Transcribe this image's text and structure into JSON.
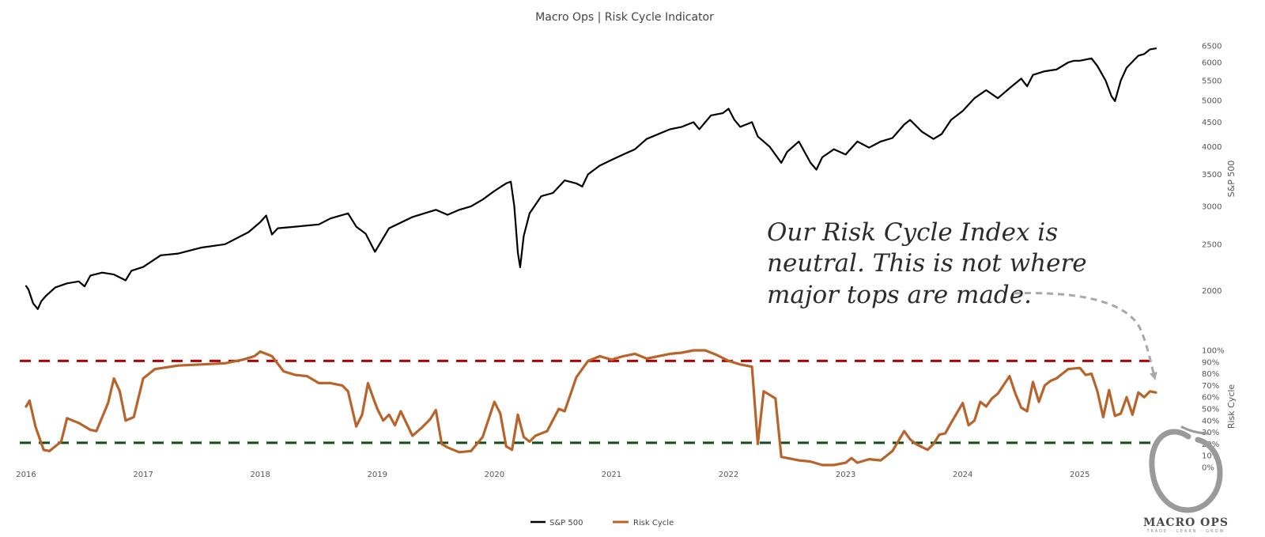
{
  "chart_data": {
    "type": "line",
    "title": "Macro Ops | Risk Cycle Indicator",
    "x_tick_labels": [
      "2016",
      "2017",
      "2018",
      "2019",
      "2020",
      "2021",
      "2022",
      "2023",
      "2024",
      "2025"
    ],
    "x_range": [
      2016.0,
      2025.67
    ],
    "y_axes": [
      {
        "id": "sp500",
        "title": "S&P 500",
        "scale": "log",
        "ticks": [
          2000,
          2500,
          3000,
          3500,
          4000,
          4500,
          5000,
          5500,
          6000,
          6500
        ],
        "range": [
          1800,
          6700
        ]
      },
      {
        "id": "risk",
        "title": "Risk Cycle",
        "scale": "linear",
        "ticks": [
          0,
          10,
          20,
          30,
          40,
          50,
          60,
          70,
          80,
          90,
          100
        ],
        "tick_labels": [
          "0%",
          "10%",
          "20%",
          "30%",
          "40%",
          "50%",
          "60%",
          "70%",
          "80%",
          "90%",
          "100%"
        ],
        "range": [
          0,
          100
        ]
      }
    ],
    "reference_lines": [
      {
        "axis": "risk",
        "value": 91,
        "color": "#b30000",
        "style": "dashed"
      },
      {
        "axis": "risk",
        "value": 21,
        "color": "#0f4d1a",
        "style": "dashed"
      }
    ],
    "series": [
      {
        "name": "S&P 500",
        "axis": "sp500",
        "color": "#000000",
        "x": [
          2016.0,
          2016.02,
          2016.06,
          2016.1,
          2016.13,
          2016.17,
          2016.25,
          2016.35,
          2016.45,
          2016.5,
          2016.55,
          2016.65,
          2016.75,
          2016.85,
          2016.9,
          2017.0,
          2017.15,
          2017.3,
          2017.5,
          2017.7,
          2017.9,
          2018.0,
          2018.05,
          2018.1,
          2018.15,
          2018.3,
          2018.5,
          2018.6,
          2018.75,
          2018.82,
          2018.9,
          2018.98,
          2019.1,
          2019.3,
          2019.4,
          2019.5,
          2019.6,
          2019.7,
          2019.8,
          2019.9,
          2020.0,
          2020.1,
          2020.14,
          2020.17,
          2020.2,
          2020.22,
          2020.25,
          2020.3,
          2020.4,
          2020.5,
          2020.6,
          2020.7,
          2020.75,
          2020.8,
          2020.9,
          2021.0,
          2021.1,
          2021.2,
          2021.3,
          2021.5,
          2021.6,
          2021.7,
          2021.75,
          2021.85,
          2021.95,
          2022.0,
          2022.05,
          2022.1,
          2022.2,
          2022.25,
          2022.35,
          2022.45,
          2022.5,
          2022.6,
          2022.7,
          2022.75,
          2022.8,
          2022.9,
          2023.0,
          2023.1,
          2023.2,
          2023.3,
          2023.4,
          2023.5,
          2023.55,
          2023.65,
          2023.75,
          2023.82,
          2023.9,
          2024.0,
          2024.1,
          2024.2,
          2024.3,
          2024.4,
          2024.5,
          2024.55,
          2024.6,
          2024.7,
          2024.8,
          2024.9,
          2024.95,
          2025.0,
          2025.1,
          2025.15,
          2025.22,
          2025.27,
          2025.3,
          2025.35,
          2025.4,
          2025.5,
          2025.55,
          2025.6,
          2025.65
        ],
        "values": [
          2044,
          2010,
          1880,
          1829,
          1900,
          1950,
          2030,
          2070,
          2090,
          2040,
          2150,
          2180,
          2160,
          2100,
          2200,
          2240,
          2370,
          2390,
          2460,
          2500,
          2650,
          2780,
          2870,
          2620,
          2700,
          2720,
          2750,
          2830,
          2900,
          2720,
          2630,
          2410,
          2700,
          2850,
          2900,
          2950,
          2880,
          2950,
          3000,
          3100,
          3230,
          3350,
          3380,
          3000,
          2400,
          2237,
          2600,
          2900,
          3150,
          3200,
          3400,
          3350,
          3300,
          3500,
          3650,
          3750,
          3850,
          3950,
          4150,
          4350,
          4400,
          4500,
          4350,
          4650,
          4700,
          4800,
          4550,
          4400,
          4500,
          4200,
          4000,
          3700,
          3900,
          4100,
          3700,
          3580,
          3800,
          3950,
          3850,
          4100,
          3980,
          4100,
          4170,
          4450,
          4550,
          4300,
          4150,
          4250,
          4550,
          4750,
          5050,
          5250,
          5050,
          5300,
          5550,
          5350,
          5650,
          5750,
          5800,
          6000,
          6050,
          6050,
          6120,
          5900,
          5500,
          5100,
          4980,
          5500,
          5850,
          6200,
          6250,
          6390,
          6420
        ]
      },
      {
        "name": "Risk Cycle",
        "axis": "risk",
        "color": "#b8632a",
        "x": [
          2016.0,
          2016.03,
          2016.08,
          2016.15,
          2016.2,
          2016.3,
          2016.35,
          2016.45,
          2016.55,
          2016.6,
          2016.7,
          2016.75,
          2016.8,
          2016.85,
          2016.92,
          2017.0,
          2017.1,
          2017.3,
          2017.5,
          2017.7,
          2017.85,
          2017.95,
          2018.0,
          2018.1,
          2018.2,
          2018.3,
          2018.4,
          2018.5,
          2018.6,
          2018.7,
          2018.75,
          2018.82,
          2018.87,
          2018.92,
          2018.97,
          2019.0,
          2019.05,
          2019.1,
          2019.15,
          2019.2,
          2019.3,
          2019.38,
          2019.45,
          2019.5,
          2019.55,
          2019.6,
          2019.7,
          2019.8,
          2019.85,
          2019.9,
          2020.0,
          2020.05,
          2020.1,
          2020.15,
          2020.2,
          2020.25,
          2020.3,
          2020.35,
          2020.45,
          2020.55,
          2020.6,
          2020.7,
          2020.8,
          2020.9,
          2021.0,
          2021.1,
          2021.2,
          2021.3,
          2021.4,
          2021.5,
          2021.6,
          2021.7,
          2021.8,
          2021.9,
          2022.0,
          2022.1,
          2022.2,
          2022.25,
          2022.3,
          2022.4,
          2022.45,
          2022.5,
          2022.6,
          2022.7,
          2022.8,
          2022.9,
          2023.0,
          2023.05,
          2023.1,
          2023.2,
          2023.3,
          2023.4,
          2023.5,
          2023.55,
          2023.6,
          2023.7,
          2023.75,
          2023.8,
          2023.85,
          2023.9,
          2024.0,
          2024.05,
          2024.1,
          2024.15,
          2024.2,
          2024.25,
          2024.3,
          2024.4,
          2024.45,
          2024.5,
          2024.55,
          2024.6,
          2024.65,
          2024.7,
          2024.75,
          2024.8,
          2024.9,
          2025.0,
          2025.05,
          2025.1,
          2025.15,
          2025.2,
          2025.25,
          2025.3,
          2025.35,
          2025.4,
          2025.45,
          2025.5,
          2025.55,
          2025.6,
          2025.65
        ],
        "values": [
          52,
          57,
          35,
          15,
          14,
          22,
          42,
          38,
          32,
          31,
          55,
          76,
          65,
          40,
          43,
          76,
          84,
          87,
          88,
          89,
          92,
          95,
          99,
          95,
          82,
          79,
          78,
          72,
          72,
          70,
          65,
          35,
          45,
          72,
          58,
          50,
          40,
          45,
          36,
          48,
          27,
          34,
          41,
          49,
          20,
          17,
          13,
          14,
          20,
          26,
          56,
          46,
          18,
          15,
          45,
          26,
          22,
          27,
          31,
          50,
          48,
          77,
          91,
          95,
          92,
          95,
          97,
          93,
          95,
          97,
          98,
          100,
          100,
          96,
          91,
          88,
          86,
          20,
          65,
          59,
          9,
          8,
          6,
          5,
          2,
          2,
          4,
          8,
          4,
          7,
          6,
          14,
          31,
          24,
          20,
          15,
          20,
          28,
          29,
          38,
          55,
          36,
          40,
          56,
          52,
          59,
          63,
          78,
          63,
          51,
          48,
          73,
          56,
          70,
          74,
          76,
          84,
          85,
          79,
          80,
          65,
          43,
          66,
          44,
          46,
          60,
          45,
          64,
          60,
          65,
          64
        ]
      }
    ],
    "legend": {
      "position": "bottom-center",
      "entries": [
        "S&P 500",
        "Risk Cycle"
      ]
    },
    "grid": false
  },
  "annotation": {
    "lines": [
      "Our Risk Cycle Index is",
      "neutral. This is not where",
      "major tops are made."
    ]
  },
  "logo": {
    "name": "MACRO OPS",
    "tagline": "TRADE · LEARN · GROW"
  },
  "colors": {
    "sp500_line": "#000000",
    "risk_line": "#b8632a",
    "upper_threshold": "#b30000",
    "lower_threshold": "#0f4d1a",
    "annotation_arrow": "#a8a8a8",
    "logo_gray": "#9a9a9a"
  }
}
